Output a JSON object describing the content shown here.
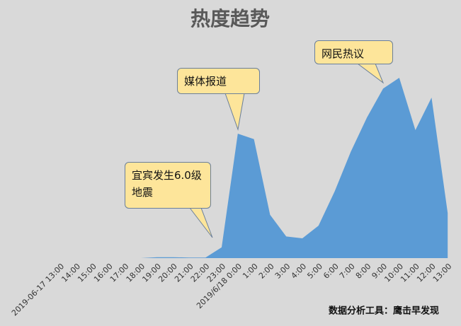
{
  "chart_data": {
    "type": "area",
    "title": "热度趋势",
    "footnote": "数据分析工具：鹰击早发现",
    "categories": [
      "2019-06-17 13:00",
      "14:00",
      "15:00",
      "16:00",
      "17:00",
      "18:00",
      "19:00",
      "20:00",
      "21:00",
      "22:00",
      "23:00",
      "2019/6/18 0:00",
      "1:00",
      "2:00",
      "3:00",
      "4:00",
      "5:00",
      "6:00",
      "7:00",
      "8:00",
      "9:00",
      "10:00",
      "11:00",
      "12:00",
      "13:00"
    ],
    "values": [
      0,
      0,
      0,
      0,
      0,
      0,
      0.5,
      0.5,
      0.3,
      0.3,
      6,
      69,
      66,
      24,
      12,
      11,
      18,
      37,
      59,
      78,
      94,
      100,
      71,
      89,
      25
    ],
    "color": "#5b9bd5",
    "ylim": [
      0,
      100
    ],
    "annotations": [
      "宜宾发生6.0级地震",
      "媒体报道",
      "网民热议"
    ]
  }
}
